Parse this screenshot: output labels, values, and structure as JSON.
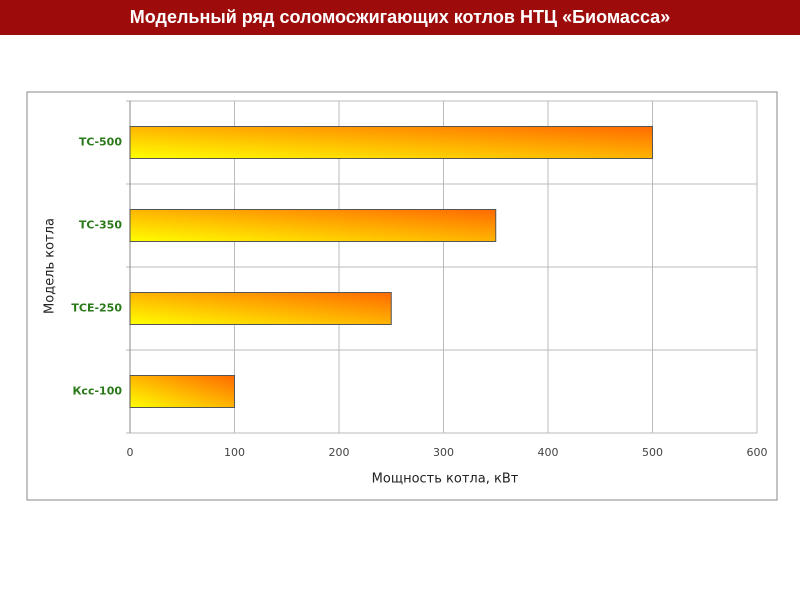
{
  "header": {
    "title": "Модельный ряд соломосжигающих котлов НТЦ «Биомасса»"
  },
  "chart_data": {
    "type": "hbar",
    "x_label": "Мощность котла, кВт",
    "y_label": "Модель котла",
    "categories": [
      "ТС-500",
      "ТС-350",
      "ТСЕ-250",
      "Ксс-100"
    ],
    "values": [
      500,
      350,
      250,
      100
    ],
    "color": [
      "#ffff00",
      "#ff6a00"
    ],
    "xlim": [
      0,
      600
    ],
    "xticks": [
      0,
      100,
      200,
      300,
      400,
      500,
      600
    ],
    "grid": true
  }
}
